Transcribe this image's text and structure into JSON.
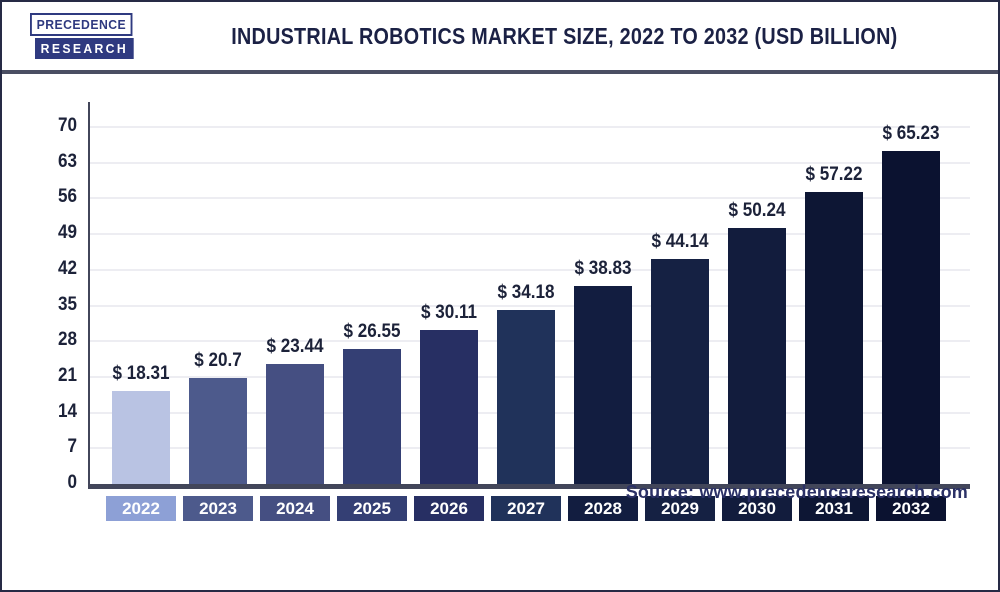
{
  "header": {
    "logo_line1": "PRECEDENCE",
    "logo_line2": "RESEARCH",
    "title": "INDUSTRIAL ROBOTICS MARKET SIZE, 2022 TO 2032 (USD BILLION)"
  },
  "chart_data": {
    "type": "bar",
    "title": "Industrial Robotics Market Size, 2022 to 2032 (USD Billion)",
    "unit": "USD Billion",
    "categories": [
      "2022",
      "2023",
      "2024",
      "2025",
      "2026",
      "2027",
      "2028",
      "2029",
      "2030",
      "2031",
      "2032"
    ],
    "values": [
      18.31,
      20.7,
      23.44,
      26.55,
      30.11,
      34.18,
      38.83,
      44.14,
      50.24,
      57.22,
      65.23
    ],
    "value_labels": [
      "$ 18.31",
      "$ 20.7",
      "$ 23.44",
      "$ 26.55",
      "$ 30.11",
      "$ 34.18",
      "$ 38.83",
      "$ 44.14",
      "$ 50.24",
      "$ 57.22",
      "$ 65.23"
    ],
    "ylim": [
      0,
      70
    ],
    "yticks": [
      0,
      7,
      14,
      21,
      28,
      35,
      42,
      49,
      56,
      63,
      70
    ],
    "grid": "horizontal",
    "legend": "none",
    "bar_colors": [
      "#b9c3e3",
      "#4d5a8c",
      "#454f82",
      "#343f74",
      "#272f63",
      "#20325a",
      "#121d40",
      "#152143",
      "#121c3d",
      "#0d1634",
      "#0b1230"
    ],
    "tick_box_colors": [
      "#8da0d6",
      "#4d5a8c",
      "#454f82",
      "#343f74",
      "#272f63",
      "#20325a",
      "#121d40",
      "#152143",
      "#121c3d",
      "#0d1634",
      "#0b1230"
    ]
  },
  "source": {
    "text": "Source: www.precedenceresearch.com"
  },
  "colors": {
    "axis": "#42465a",
    "grid": "#ededf2",
    "label_text": "#1c2239",
    "title_text": "#1b2145",
    "logo_navy": "#2f3a80",
    "frame_border": "#262a45"
  }
}
